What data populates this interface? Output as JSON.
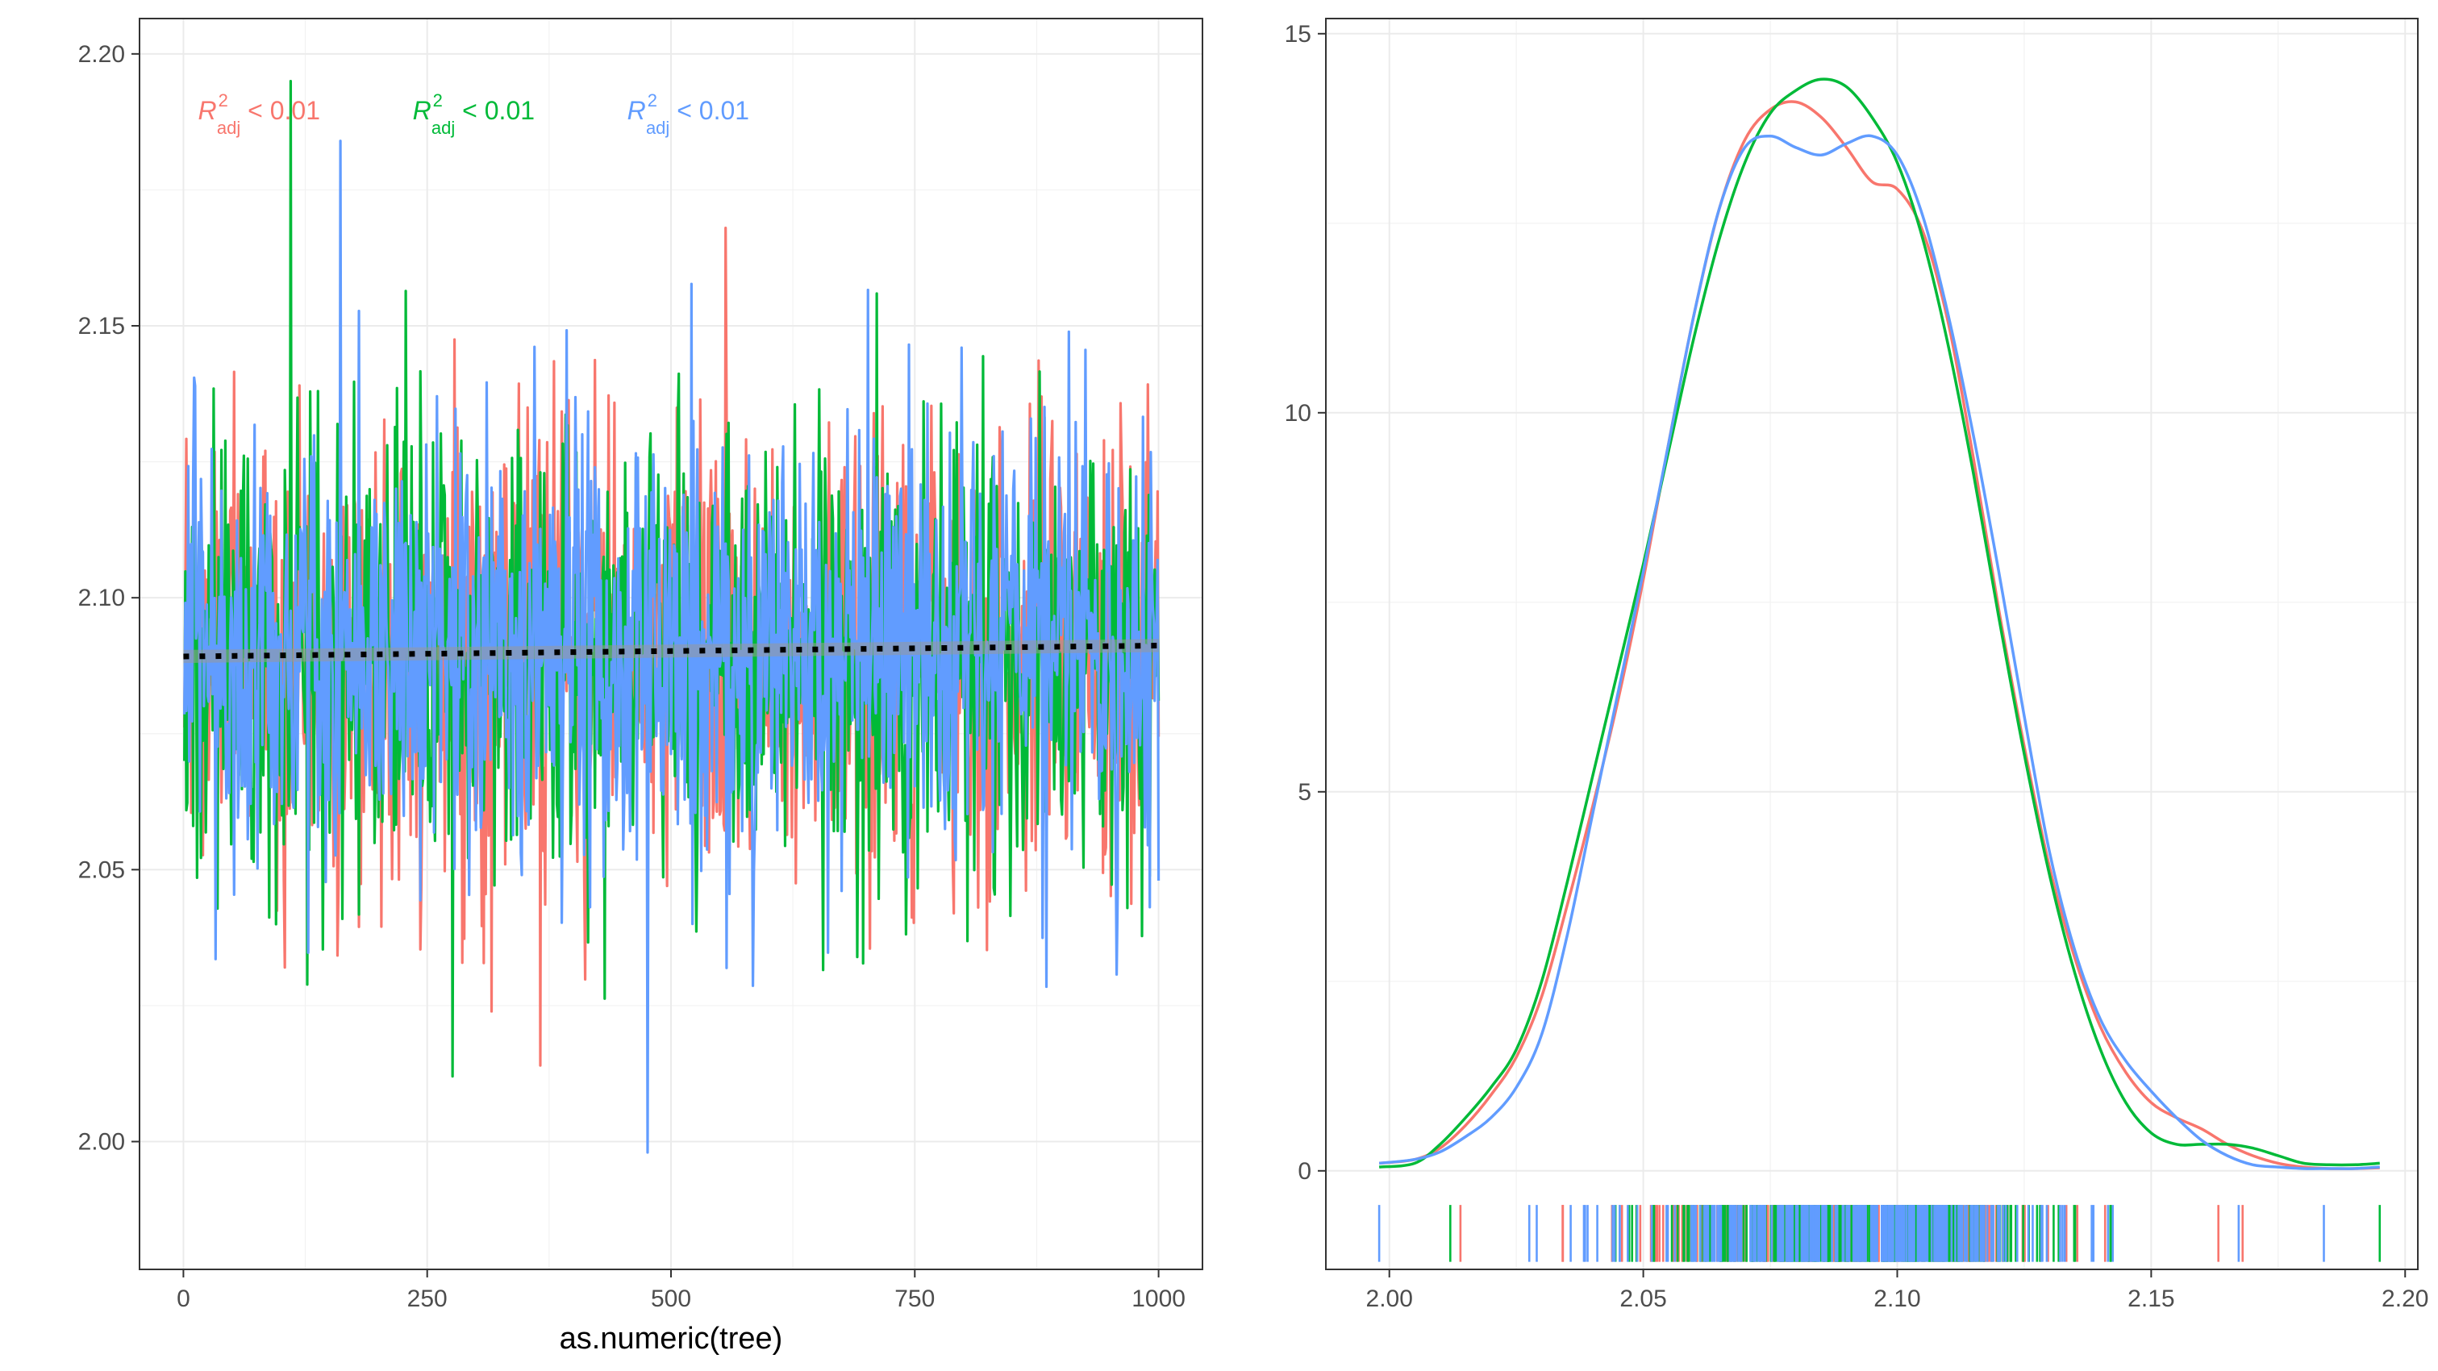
{
  "chart_data": [
    {
      "type": "line",
      "panel": "trace",
      "xlabel": "as.numeric(tree)",
      "ylabel": "",
      "xlim": [
        -45,
        1045
      ],
      "ylim": [
        1.9765,
        2.2065
      ],
      "xticks": [
        0,
        250,
        500,
        750,
        1000
      ],
      "xtick_labels": [
        "0",
        "250",
        "500",
        "750",
        "1000"
      ],
      "yticks": [
        2.0,
        2.05,
        2.1,
        2.15,
        2.2
      ],
      "ytick_labels": [
        "2.00",
        "2.05",
        "2.10",
        "2.15",
        "2.20"
      ],
      "grid": true,
      "legend": "none",
      "series": [
        {
          "color": "#F8766D",
          "n": 1000,
          "mean": 2.09,
          "sd": 0.021,
          "x_range": [
            1,
            1000
          ],
          "y_range": [
            2.014,
            2.168
          ]
        },
        {
          "color": "#00BA38",
          "n": 1000,
          "mean": 2.09,
          "sd": 0.021,
          "x_range": [
            1,
            1000
          ],
          "y_range": [
            2.012,
            2.195
          ]
        },
        {
          "color": "#619CFF",
          "n": 1000,
          "mean": 2.09,
          "sd": 0.021,
          "x_range": [
            1,
            1000
          ],
          "y_range": [
            1.998,
            2.184
          ]
        }
      ],
      "trend_line": {
        "style": "dotted",
        "color": "#000000",
        "x": [
          0,
          1000
        ],
        "y": [
          2.0892,
          2.0912
        ]
      },
      "annotations": [
        {
          "symbol": "R",
          "sup": "2",
          "sub": "adj",
          "text": " < 0.01",
          "color": "#F8766D",
          "x": 15,
          "y": 2.188
        },
        {
          "symbol": "R",
          "sup": "2",
          "sub": "adj",
          "text": " < 0.01",
          "color": "#00BA38",
          "x": 235,
          "y": 2.188
        },
        {
          "symbol": "R",
          "sup": "2",
          "sub": "adj",
          "text": " < 0.01",
          "color": "#619CFF",
          "x": 455,
          "y": 2.188
        }
      ]
    },
    {
      "type": "line",
      "panel": "density",
      "xlabel": "",
      "ylabel": "",
      "xlim": [
        1.9875,
        2.2025
      ],
      "ylim": [
        -1.3,
        15.2
      ],
      "xticks": [
        2.0,
        2.05,
        2.1,
        2.15,
        2.2
      ],
      "xtick_labels": [
        "2.00",
        "2.05",
        "2.10",
        "2.15",
        "2.20"
      ],
      "yticks": [
        0,
        5,
        10,
        15
      ],
      "ytick_labels": [
        "0",
        "5",
        "10",
        "15"
      ],
      "grid": true,
      "legend": "none",
      "rug": true,
      "series": [
        {
          "color": "#F8766D",
          "x": [
            1.998,
            2.005,
            2.01,
            2.015,
            2.02,
            2.025,
            2.03,
            2.035,
            2.04,
            2.045,
            2.05,
            2.055,
            2.06,
            2.065,
            2.07,
            2.075,
            2.08,
            2.085,
            2.09,
            2.095,
            2.1,
            2.105,
            2.11,
            2.115,
            2.12,
            2.125,
            2.13,
            2.135,
            2.14,
            2.145,
            2.15,
            2.155,
            2.16,
            2.165,
            2.17,
            2.175,
            2.18,
            2.185,
            2.19,
            2.195
          ],
          "y": [
            0.1,
            0.15,
            0.3,
            0.6,
            1.0,
            1.5,
            2.3,
            3.5,
            4.8,
            6.2,
            7.8,
            9.6,
            11.3,
            12.7,
            13.6,
            14.0,
            14.1,
            13.9,
            13.5,
            13.05,
            12.95,
            12.4,
            11.2,
            9.4,
            7.4,
            5.6,
            4.0,
            2.8,
            1.9,
            1.3,
            0.9,
            0.7,
            0.55,
            0.35,
            0.2,
            0.1,
            0.05,
            0.03,
            0.03,
            0.04
          ]
        },
        {
          "color": "#00BA38",
          "x": [
            1.998,
            2.005,
            2.01,
            2.015,
            2.02,
            2.025,
            2.03,
            2.035,
            2.04,
            2.045,
            2.05,
            2.055,
            2.06,
            2.065,
            2.07,
            2.075,
            2.08,
            2.085,
            2.09,
            2.095,
            2.1,
            2.105,
            2.11,
            2.115,
            2.12,
            2.125,
            2.13,
            2.135,
            2.14,
            2.145,
            2.15,
            2.155,
            2.16,
            2.165,
            2.17,
            2.175,
            2.18,
            2.185,
            2.19,
            2.195
          ],
          "y": [
            0.05,
            0.1,
            0.35,
            0.7,
            1.1,
            1.6,
            2.5,
            3.8,
            5.2,
            6.6,
            8.0,
            9.5,
            11.0,
            12.3,
            13.3,
            13.95,
            14.25,
            14.4,
            14.3,
            13.9,
            13.3,
            12.3,
            10.9,
            9.2,
            7.3,
            5.5,
            3.9,
            2.6,
            1.6,
            0.9,
            0.5,
            0.35,
            0.35,
            0.35,
            0.3,
            0.2,
            0.1,
            0.08,
            0.08,
            0.1
          ]
        },
        {
          "color": "#619CFF",
          "x": [
            1.998,
            2.005,
            2.01,
            2.015,
            2.02,
            2.025,
            2.03,
            2.035,
            2.04,
            2.045,
            2.05,
            2.055,
            2.06,
            2.065,
            2.07,
            2.075,
            2.08,
            2.085,
            2.09,
            2.095,
            2.1,
            2.105,
            2.11,
            2.115,
            2.12,
            2.125,
            2.13,
            2.135,
            2.14,
            2.145,
            2.15,
            2.155,
            2.16,
            2.165,
            2.17,
            2.175,
            2.18,
            2.185,
            2.19,
            2.195
          ],
          "y": [
            0.1,
            0.15,
            0.25,
            0.45,
            0.7,
            1.1,
            1.8,
            3.1,
            4.7,
            6.3,
            7.9,
            9.6,
            11.3,
            12.7,
            13.5,
            13.65,
            13.5,
            13.4,
            13.55,
            13.65,
            13.4,
            12.6,
            11.3,
            9.7,
            7.9,
            6.0,
            4.2,
            2.9,
            2.0,
            1.45,
            1.05,
            0.7,
            0.4,
            0.2,
            0.08,
            0.05,
            0.03,
            0.03,
            0.03,
            0.05
          ]
        }
      ]
    }
  ]
}
